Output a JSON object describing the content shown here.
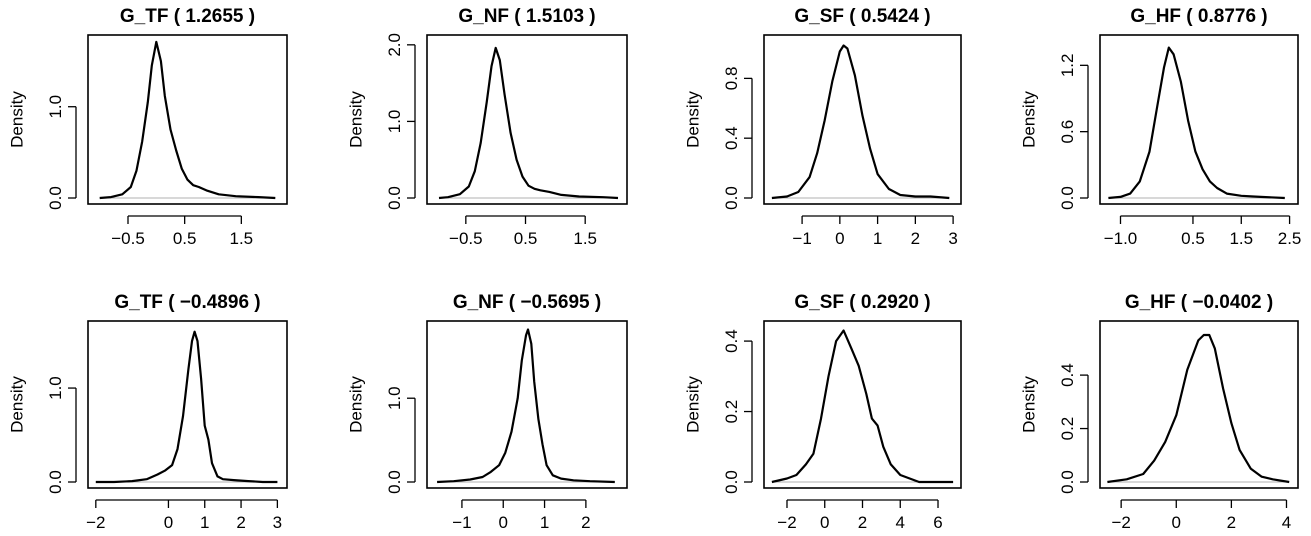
{
  "chart_data": [
    {
      "type": "line",
      "title": "G_TF ( 1.2655 )",
      "ylabel": "Density",
      "xlim": [
        -1.1,
        2.2
      ],
      "ylim": [
        0,
        1.72
      ],
      "xticks": [
        -0.5,
        0.5,
        1.5
      ],
      "xtick_labels": [
        "−0.5",
        "0.5",
        "1.5"
      ],
      "yticks": [
        0,
        1
      ],
      "ytick_labels": [
        "0.0",
        "1.0"
      ],
      "series": [
        {
          "x": [
            -1.0,
            -0.8,
            -0.6,
            -0.45,
            -0.35,
            -0.25,
            -0.15,
            -0.08,
            0.0,
            0.08,
            0.15,
            0.25,
            0.35,
            0.45,
            0.55,
            0.65,
            0.75,
            0.9,
            1.1,
            1.4,
            1.8,
            2.1
          ],
          "y": [
            0.0,
            0.01,
            0.04,
            0.12,
            0.3,
            0.62,
            1.05,
            1.45,
            1.71,
            1.5,
            1.12,
            0.75,
            0.52,
            0.32,
            0.2,
            0.14,
            0.12,
            0.08,
            0.04,
            0.02,
            0.01,
            0.0
          ]
        }
      ]
    },
    {
      "type": "line",
      "title": "G_NF ( 1.5103 )",
      "ylabel": "Density",
      "xlim": [
        -1.05,
        2.1
      ],
      "ylim": [
        0,
        2.05
      ],
      "xticks": [
        -0.5,
        0.5,
        1.5
      ],
      "xtick_labels": [
        "−0.5",
        "0.5",
        "1.5"
      ],
      "yticks": [
        0,
        1,
        2
      ],
      "ytick_labels": [
        "0.0",
        "1.0",
        "2.0"
      ],
      "series": [
        {
          "x": [
            -0.95,
            -0.8,
            -0.6,
            -0.45,
            -0.35,
            -0.25,
            -0.15,
            -0.07,
            0.0,
            0.07,
            0.15,
            0.25,
            0.35,
            0.45,
            0.55,
            0.65,
            0.75,
            0.9,
            1.1,
            1.4,
            1.8,
            2.05
          ],
          "y": [
            0.0,
            0.01,
            0.05,
            0.15,
            0.35,
            0.72,
            1.25,
            1.72,
            1.96,
            1.8,
            1.35,
            0.85,
            0.5,
            0.28,
            0.16,
            0.12,
            0.1,
            0.08,
            0.04,
            0.02,
            0.01,
            0.0
          ]
        }
      ]
    },
    {
      "type": "line",
      "title": "G_SF ( 0.5424 )",
      "ylabel": "Density",
      "xlim": [
        -1.85,
        3.05
      ],
      "ylim": [
        0,
        1.05
      ],
      "xticks": [
        -1,
        0,
        1,
        2,
        3
      ],
      "xtick_labels": [
        "−1",
        "0",
        "1",
        "2",
        "3"
      ],
      "yticks": [
        0,
        0.4,
        0.8
      ],
      "ytick_labels": [
        "0.0",
        "0.4",
        "0.8"
      ],
      "series": [
        {
          "x": [
            -1.8,
            -1.4,
            -1.1,
            -0.8,
            -0.6,
            -0.4,
            -0.2,
            0.0,
            0.1,
            0.2,
            0.4,
            0.6,
            0.8,
            1.0,
            1.3,
            1.6,
            2.0,
            2.4,
            2.9
          ],
          "y": [
            0.0,
            0.01,
            0.04,
            0.14,
            0.3,
            0.52,
            0.78,
            0.98,
            1.02,
            1.0,
            0.82,
            0.55,
            0.33,
            0.16,
            0.06,
            0.02,
            0.01,
            0.01,
            0.0
          ]
        }
      ]
    },
    {
      "type": "line",
      "title": "G_HF ( 0.8776 )",
      "ylabel": "Density",
      "xlim": [
        -1.3,
        2.55
      ],
      "ylim": [
        0,
        1.42
      ],
      "xticks": [
        -1.0,
        0.5,
        1.5,
        2.5
      ],
      "xtick_labels": [
        "−1.0",
        "0.5",
        "1.5",
        "2.5"
      ],
      "yticks": [
        0,
        0.6,
        1.2
      ],
      "ytick_labels": [
        "0.0",
        "0.6",
        "1.2"
      ],
      "series": [
        {
          "x": [
            -1.25,
            -1.0,
            -0.8,
            -0.6,
            -0.4,
            -0.25,
            -0.1,
            0.0,
            0.1,
            0.25,
            0.4,
            0.55,
            0.7,
            0.85,
            1.0,
            1.2,
            1.5,
            1.9,
            2.4
          ],
          "y": [
            0.0,
            0.01,
            0.04,
            0.15,
            0.42,
            0.8,
            1.18,
            1.36,
            1.3,
            1.05,
            0.7,
            0.42,
            0.26,
            0.15,
            0.09,
            0.04,
            0.02,
            0.01,
            0.0
          ]
        }
      ]
    },
    {
      "type": "line",
      "title": "G_TF ( −0.4896 )",
      "ylabel": "Density",
      "xlim": [
        -2.05,
        3.1
      ],
      "ylim": [
        0,
        1.65
      ],
      "xticks": [
        -2,
        0,
        1,
        2,
        3
      ],
      "xtick_labels": [
        "−2",
        "0",
        "1",
        "2",
        "3"
      ],
      "yticks": [
        0,
        1
      ],
      "ytick_labels": [
        "0.0",
        "1.0"
      ],
      "series": [
        {
          "x": [
            -2.0,
            -1.5,
            -1.0,
            -0.6,
            -0.3,
            -0.1,
            0.1,
            0.25,
            0.4,
            0.55,
            0.65,
            0.72,
            0.8,
            0.9,
            1.0,
            1.1,
            1.2,
            1.35,
            1.5,
            1.8,
            2.2,
            2.6,
            3.0
          ],
          "y": [
            0.0,
            0.0,
            0.01,
            0.03,
            0.08,
            0.12,
            0.18,
            0.35,
            0.7,
            1.2,
            1.5,
            1.6,
            1.5,
            1.1,
            0.6,
            0.45,
            0.2,
            0.06,
            0.03,
            0.02,
            0.01,
            0.0,
            0.0
          ]
        }
      ]
    },
    {
      "type": "line",
      "title": "G_NF ( −0.5695 )",
      "ylabel": "Density",
      "xlim": [
        -1.7,
        2.85
      ],
      "ylim": [
        0,
        1.85
      ],
      "xticks": [
        -1,
        0,
        1,
        2
      ],
      "xtick_labels": [
        "−1",
        "0",
        "1",
        "2"
      ],
      "yticks": [
        0,
        1
      ],
      "ytick_labels": [
        "0.0",
        "1.0"
      ],
      "series": [
        {
          "x": [
            -1.6,
            -1.2,
            -0.8,
            -0.5,
            -0.3,
            -0.1,
            0.05,
            0.2,
            0.35,
            0.45,
            0.55,
            0.6,
            0.68,
            0.75,
            0.85,
            0.95,
            1.05,
            1.2,
            1.4,
            1.7,
            2.1,
            2.7
          ],
          "y": [
            0.0,
            0.01,
            0.03,
            0.06,
            0.12,
            0.2,
            0.35,
            0.6,
            1.0,
            1.45,
            1.75,
            1.82,
            1.65,
            1.2,
            0.75,
            0.45,
            0.2,
            0.08,
            0.04,
            0.02,
            0.01,
            0.0
          ]
        }
      ]
    },
    {
      "type": "line",
      "title": "G_SF ( 0.2920 )",
      "ylabel": "Density",
      "xlim": [
        -2.9,
        6.9
      ],
      "ylim": [
        0,
        0.44
      ],
      "xticks": [
        -2,
        0,
        2,
        4,
        6
      ],
      "xtick_labels": [
        "−2",
        "0",
        "2",
        "4",
        "6"
      ],
      "yticks": [
        0,
        0.2,
        0.4
      ],
      "ytick_labels": [
        "0.0",
        "0.2",
        "0.4"
      ],
      "series": [
        {
          "x": [
            -2.8,
            -2.0,
            -1.5,
            -1.0,
            -0.6,
            -0.2,
            0.2,
            0.6,
            1.0,
            1.4,
            1.8,
            2.2,
            2.5,
            2.8,
            3.1,
            3.5,
            4.0,
            4.5,
            5.0,
            5.8,
            6.8
          ],
          "y": [
            0.0,
            0.01,
            0.02,
            0.05,
            0.08,
            0.18,
            0.3,
            0.4,
            0.43,
            0.38,
            0.33,
            0.25,
            0.18,
            0.16,
            0.1,
            0.05,
            0.02,
            0.01,
            0.0,
            0.0,
            0.0
          ]
        }
      ]
    },
    {
      "type": "line",
      "title": "G_HF ( −0.0402 )",
      "ylabel": "Density",
      "xlim": [
        -2.55,
        4.2
      ],
      "ylim": [
        0,
        0.58
      ],
      "xticks": [
        -2,
        0,
        2,
        4
      ],
      "xtick_labels": [
        "−2",
        "0",
        "2",
        "4"
      ],
      "yticks": [
        0,
        0.2,
        0.4
      ],
      "ytick_labels": [
        "0.0",
        "0.2",
        "0.4"
      ],
      "series": [
        {
          "x": [
            -2.5,
            -1.8,
            -1.2,
            -0.8,
            -0.4,
            0.0,
            0.4,
            0.8,
            1.0,
            1.2,
            1.4,
            1.7,
            2.0,
            2.3,
            2.7,
            3.1,
            3.5,
            4.1
          ],
          "y": [
            0.0,
            0.01,
            0.03,
            0.08,
            0.15,
            0.25,
            0.42,
            0.53,
            0.55,
            0.55,
            0.5,
            0.35,
            0.22,
            0.12,
            0.05,
            0.02,
            0.01,
            0.0
          ]
        }
      ]
    }
  ]
}
